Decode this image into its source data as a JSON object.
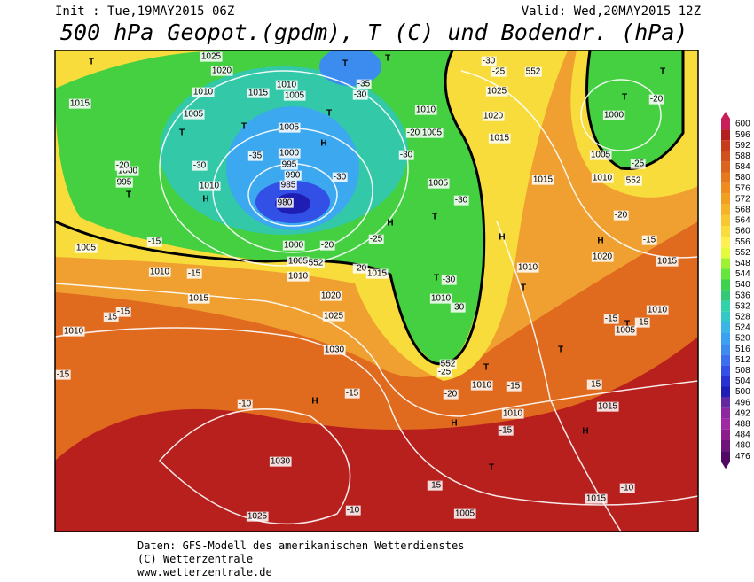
{
  "header": {
    "init": "Init : Tue,19MAY2015 06Z",
    "valid": "Valid: Wed,20MAY2015 12Z",
    "title": "500 hPa Geopot.(gpdm), T (C) und Bodendr. (hPa)"
  },
  "colorbar": {
    "levels": [
      476,
      480,
      484,
      488,
      492,
      496,
      500,
      504,
      508,
      512,
      516,
      520,
      524,
      528,
      532,
      536,
      540,
      544,
      548,
      552,
      556,
      560,
      564,
      568,
      572,
      576,
      580,
      584,
      588,
      592,
      596,
      600
    ],
    "colors": [
      "#500a64",
      "#6e1478",
      "#8c1e8c",
      "#a028a0",
      "#8c28a0",
      "#6428a0",
      "#1e1eb4",
      "#2832d2",
      "#3250e6",
      "#3c6ef0",
      "#3c8cf0",
      "#3ca0f0",
      "#3cb4e6",
      "#32c8c8",
      "#32d2aa",
      "#32c878",
      "#3cd250",
      "#64e63c",
      "#a0f032",
      "#e6fa3c",
      "#fff050",
      "#fadc3c",
      "#f8c832",
      "#f5b428",
      "#f0a01e",
      "#f08c1e",
      "#e6781e",
      "#dc641e",
      "#d2501e",
      "#c83c1e",
      "#b41e1e",
      "#c81e5a"
    ]
  },
  "map_labels": [
    "H",
    "H",
    "H",
    "H",
    "H",
    "H",
    "H",
    "H",
    "T",
    "T",
    "T",
    "T",
    "T",
    "T",
    "T",
    "T",
    "T",
    "T",
    "T",
    "T",
    "T",
    "T",
    "T",
    "T",
    "1025",
    "1020",
    "1010",
    "1015",
    "1010",
    "1005",
    "1015",
    "1005",
    "1005",
    "1000",
    "995",
    "990",
    "985",
    "980",
    "1000",
    "995",
    "1010",
    "1000",
    "1005",
    "1010",
    "1005",
    "1010",
    "1015",
    "1020",
    "1025",
    "1030",
    "1010",
    "1015",
    "1010",
    "1005",
    "1005",
    "1010",
    "1025",
    "1020",
    "1015",
    "1015",
    "1010",
    "1000",
    "1005",
    "1020",
    "1015",
    "1010",
    "1010",
    "1005",
    "1010",
    "1010",
    "1015",
    "1030",
    "1025",
    "1005",
    "1015",
    "-30",
    "-25",
    "552",
    "-35",
    "-30",
    "-20",
    "-30",
    "-35",
    "-30",
    "-20",
    "-30",
    "-25",
    "-20",
    "-30",
    "-15",
    "-15",
    "-15",
    "-15",
    "-20",
    "-20",
    "-25",
    "-20",
    "-15",
    "-15",
    "-15",
    "-30",
    "-30",
    "-25",
    "-20",
    "-15",
    "-15",
    "-15",
    "-15",
    "-10",
    "-15",
    "-15",
    "-10",
    "-10",
    "552",
    "552",
    "552"
  ],
  "footer": [
    "Daten: GFS-Modell des amerikanischen Wetterdienstes",
    "(C) Wetterzentrale",
    "www.wetterzentrale.de"
  ]
}
